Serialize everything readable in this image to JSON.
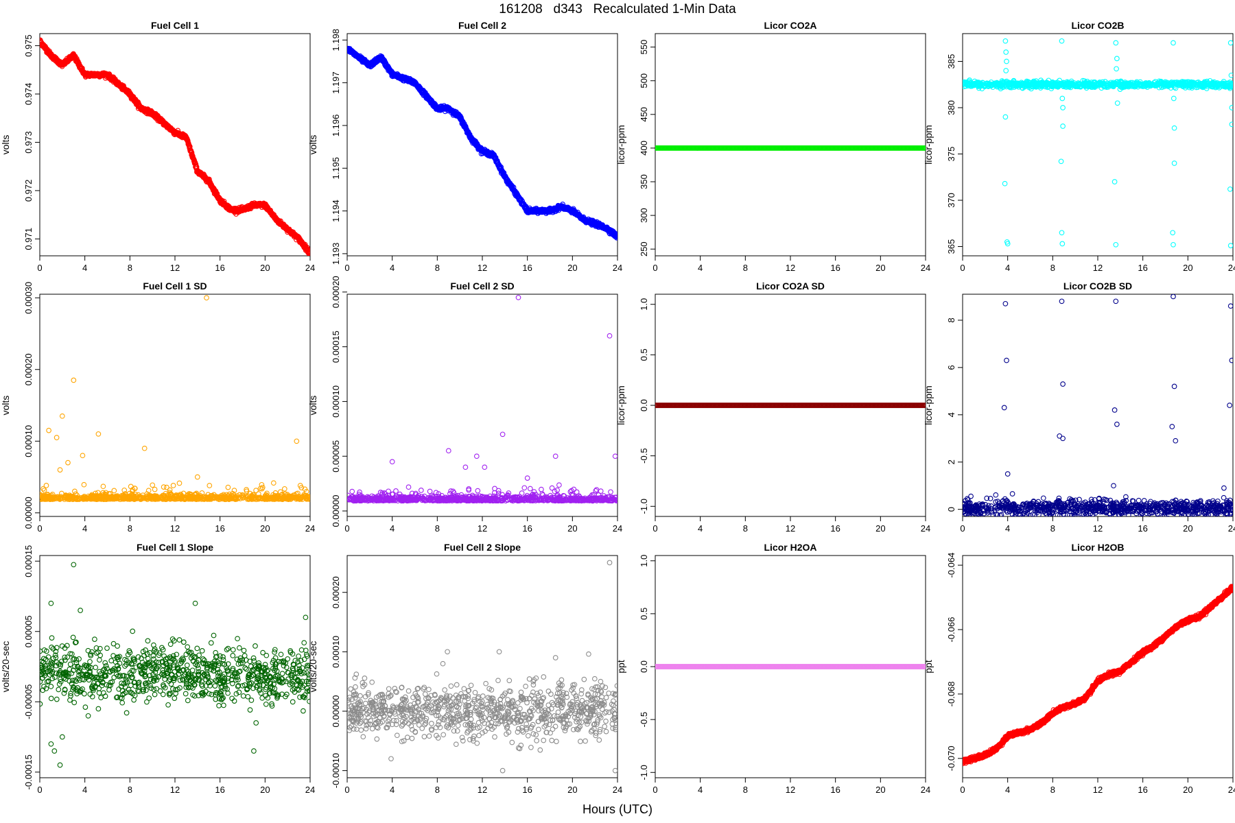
{
  "title": "161208   d343   Recalculated 1-Min Data",
  "xlabel": "Hours (UTC)",
  "chart_data": [
    {
      "id": "fc1",
      "type": "scatter",
      "title": "Fuel Cell 1",
      "ylabel": "volts",
      "xlim": [
        0,
        24
      ],
      "ylim": [
        0.97065,
        0.97525
      ],
      "xticks": [
        "0",
        "4",
        "8",
        "12",
        "16",
        "20",
        "24"
      ],
      "yticks": [
        "0.971",
        "0.972",
        "0.973",
        "0.974",
        "0.975"
      ],
      "color": "#ff0000",
      "x": [
        0,
        1,
        2,
        3,
        4,
        5,
        6,
        7,
        8,
        9,
        10,
        11,
        12,
        13,
        14,
        15,
        16,
        17,
        18,
        19,
        20,
        21,
        22,
        23,
        24
      ],
      "y": [
        0.9751,
        0.9748,
        0.9746,
        0.9748,
        0.9744,
        0.9744,
        0.9744,
        0.9742,
        0.974,
        0.9737,
        0.9736,
        0.9734,
        0.9732,
        0.9731,
        0.9724,
        0.9722,
        0.9718,
        0.9716,
        0.9716,
        0.9717,
        0.9717,
        0.9714,
        0.9712,
        0.971,
        0.9707
      ]
    },
    {
      "id": "fc2",
      "type": "scatter",
      "title": "Fuel Cell 2",
      "ylabel": "volts",
      "xlim": [
        0,
        24
      ],
      "ylim": [
        1.19295,
        1.19815
      ],
      "xticks": [
        "0",
        "4",
        "8",
        "12",
        "16",
        "20",
        "24"
      ],
      "yticks": [
        "1.193",
        "1.194",
        "1.195",
        "1.196",
        "1.197",
        "1.198"
      ],
      "color": "#0000ff",
      "x": [
        0,
        1,
        2,
        3,
        4,
        5,
        6,
        7,
        8,
        9,
        10,
        11,
        12,
        13,
        14,
        15,
        16,
        17,
        18,
        19,
        20,
        21,
        22,
        23,
        24
      ],
      "y": [
        1.1978,
        1.1976,
        1.1974,
        1.1976,
        1.1972,
        1.1971,
        1.197,
        1.1967,
        1.1964,
        1.1964,
        1.1962,
        1.1957,
        1.1954,
        1.1953,
        1.1948,
        1.1944,
        1.194,
        1.194,
        1.194,
        1.1941,
        1.194,
        1.1938,
        1.1937,
        1.1936,
        1.1934
      ]
    },
    {
      "id": "co2a",
      "type": "scatter",
      "title": "Licor CO2A",
      "ylabel": "licor-ppm",
      "xlim": [
        0,
        24
      ],
      "ylim": [
        240,
        570
      ],
      "xticks": [
        "0",
        "4",
        "8",
        "12",
        "16",
        "20",
        "24"
      ],
      "yticks": [
        "250",
        "300",
        "350",
        "400",
        "450",
        "500",
        "550"
      ],
      "color": "#00ee00",
      "x": [
        0,
        24
      ],
      "y": [
        400,
        400
      ]
    },
    {
      "id": "co2b",
      "type": "scatter",
      "title": "Licor CO2B",
      "ylabel": "licor-ppm",
      "xlim": [
        0,
        24
      ],
      "ylim": [
        364,
        388
      ],
      "xticks": [
        "0",
        "4",
        "8",
        "12",
        "16",
        "20",
        "24"
      ],
      "yticks": [
        "365",
        "370",
        "375",
        "380",
        "385"
      ],
      "color": "#00ffff",
      "baseline": 382.5,
      "x": [
        3.8,
        3.85,
        3.9,
        3.75,
        3.95,
        4.0,
        3.8,
        3.85,
        8.8,
        8.85,
        8.9,
        8.75,
        8.8,
        8.85,
        8.9,
        13.6,
        13.7,
        13.65,
        13.5,
        13.6,
        13.75,
        18.7,
        18.75,
        18.8,
        18.65,
        18.7,
        18.8,
        23.8,
        23.85,
        23.9,
        23.75,
        23.8,
        23.9
      ],
      "y": [
        387.2,
        386.0,
        385.0,
        371.8,
        365.5,
        365.3,
        379.0,
        384.0,
        387.2,
        381.0,
        378.0,
        374.2,
        366.5,
        365.3,
        380.0,
        387.0,
        385.3,
        384.2,
        372.0,
        365.2,
        380.5,
        387.0,
        381.0,
        377.8,
        366.5,
        365.2,
        374.0,
        387.0,
        383.5,
        378.2,
        371.2,
        365.1,
        380.0
      ]
    },
    {
      "id": "fc1sd",
      "type": "scatter",
      "title": "Fuel Cell 1 SD",
      "ylabel": "volts",
      "xlim": [
        0,
        24
      ],
      "ylim": [
        -5e-06,
        0.000305
      ],
      "xticks": [
        "0",
        "4",
        "8",
        "12",
        "16",
        "20",
        "24"
      ],
      "yticks": [
        "0.00000",
        "0.00010",
        "0.00020",
        "0.00030"
      ],
      "color": "#ffa500",
      "baseline": 2e-05,
      "x": [
        14.8,
        3.0,
        2.0,
        0.8,
        1.5,
        5.2,
        9.3,
        22.8,
        2.5,
        1.8,
        3.8,
        14.0
      ],
      "y": [
        0.0003,
        0.000185,
        0.000135,
        0.000115,
        0.000105,
        0.00011,
        9e-05,
        0.0001,
        7e-05,
        6e-05,
        8e-05,
        5e-05
      ]
    },
    {
      "id": "fc2sd",
      "type": "scatter",
      "title": "Fuel Cell 2 SD",
      "ylabel": "volts",
      "xlim": [
        0,
        24
      ],
      "ylim": [
        -5e-06,
        0.000198
      ],
      "xticks": [
        "0",
        "4",
        "8",
        "12",
        "16",
        "20",
        "24"
      ],
      "yticks": [
        "0.00000",
        "0.00005",
        "0.00010",
        "0.00015",
        "0.00020"
      ],
      "color": "#a020f0",
      "baseline": 1e-05,
      "x": [
        15.2,
        23.3,
        13.8,
        9.0,
        11.5,
        18.5,
        23.8,
        4.0,
        12.2,
        10.5,
        16.0
      ],
      "y": [
        0.000195,
        0.00016,
        7e-05,
        5.5e-05,
        5e-05,
        5e-05,
        5e-05,
        4.5e-05,
        4e-05,
        4e-05,
        3e-05
      ]
    },
    {
      "id": "co2asd",
      "type": "scatter",
      "title": "Licor CO2A SD",
      "ylabel": "licor-ppm",
      "xlim": [
        0,
        24
      ],
      "ylim": [
        -1.1,
        1.1
      ],
      "xticks": [
        "0",
        "4",
        "8",
        "12",
        "16",
        "20",
        "24"
      ],
      "yticks": [
        "-1.0",
        "-0.5",
        "0.0",
        "0.5",
        "1.0"
      ],
      "color": "#8b0000",
      "x": [
        0,
        24
      ],
      "y": [
        0,
        0
      ]
    },
    {
      "id": "co2bsd",
      "type": "scatter",
      "title": "Licor CO2B SD",
      "ylabel": "licor-ppm",
      "xlim": [
        0,
        24
      ],
      "ylim": [
        -0.3,
        9.1
      ],
      "xticks": [
        "0",
        "4",
        "8",
        "12",
        "16",
        "20",
        "24"
      ],
      "yticks": [
        "0",
        "2",
        "4",
        "6",
        "8"
      ],
      "color": "#00008b",
      "baseline": 0.05,
      "x": [
        3.8,
        3.9,
        3.7,
        4.0,
        8.8,
        8.9,
        8.6,
        8.9,
        13.6,
        13.5,
        13.7,
        13.4,
        18.7,
        18.8,
        18.6,
        18.9,
        23.8,
        23.9,
        23.7,
        23.2
      ],
      "y": [
        8.7,
        6.3,
        4.3,
        1.5,
        8.8,
        5.3,
        3.1,
        3.0,
        8.8,
        4.2,
        3.6,
        1.0,
        9.0,
        5.2,
        3.5,
        2.9,
        8.6,
        6.3,
        4.4,
        0.9
      ]
    },
    {
      "id": "fc1slope",
      "type": "scatter",
      "title": "Fuel Cell 1 Slope",
      "ylabel": "volts/20-sec",
      "xlim": [
        0,
        24
      ],
      "ylim": [
        -0.000158,
        0.000158
      ],
      "xticks": [
        "0",
        "4",
        "8",
        "12",
        "16",
        "20",
        "24"
      ],
      "yticks": [
        "-0.00015",
        "-0.00005",
        "0.00005",
        "0.00015"
      ],
      "color": "#006400",
      "baseline": -1e-05,
      "x": [
        3.0,
        13.8,
        1.0,
        3.6,
        23.6,
        1.8,
        1.0,
        1.3,
        2.0,
        19.0,
        19.2,
        4.3,
        5.2
      ],
      "y": [
        0.000145,
        9e-05,
        9e-05,
        8e-05,
        7e-05,
        -0.00014,
        -0.00011,
        -0.00012,
        -0.0001,
        -0.00012,
        -8e-05,
        -7e-05,
        -6e-05
      ]
    },
    {
      "id": "fc2slope",
      "type": "scatter",
      "title": "Fuel Cell 2 Slope",
      "ylabel": "volts/20-sec",
      "xlim": [
        0,
        24
      ],
      "ylim": [
        -0.000112,
        0.000262
      ],
      "xticks": [
        "0",
        "4",
        "8",
        "12",
        "16",
        "20",
        "24"
      ],
      "yticks": [
        "-0.00010",
        "0.00000",
        "0.00010",
        "0.00020"
      ],
      "color": "#8c8c8c",
      "baseline": 0.0,
      "x": [
        23.3,
        8.9,
        13.5,
        18.5,
        22.5,
        3.9,
        13.8,
        23.8,
        11.2,
        8.5
      ],
      "y": [
        0.00025,
        0.0001,
        0.0001,
        9e-05,
        5e-05,
        -8e-05,
        -0.0001,
        -0.0001,
        -5e-05,
        8e-05
      ]
    },
    {
      "id": "h2oa",
      "type": "scatter",
      "title": "Licor H2OA",
      "ylabel": "ppt",
      "xlim": [
        0,
        24
      ],
      "ylim": [
        -1.05,
        1.05
      ],
      "xticks": [
        "0",
        "4",
        "8",
        "12",
        "16",
        "20",
        "24"
      ],
      "yticks": [
        "-1.0",
        "-0.5",
        "0.0",
        "0.5",
        "1.0"
      ],
      "color": "#ee82ee",
      "x": [
        0,
        24
      ],
      "y": [
        0,
        0
      ]
    },
    {
      "id": "h2ob",
      "type": "scatter",
      "title": "Licor H2OB",
      "ylabel": "ppt",
      "xlim": [
        0,
        24
      ],
      "ylim": [
        -0.0706,
        -0.0637
      ],
      "xticks": [
        "0",
        "4",
        "8",
        "12",
        "16",
        "20",
        "24"
      ],
      "yticks": [
        "-0.070",
        "-0.068",
        "-0.066",
        "-0.064"
      ],
      "color": "#ff0000",
      "x": [
        0,
        1,
        2,
        3,
        4,
        5,
        6,
        7,
        8,
        9,
        10,
        11,
        12,
        13,
        14,
        15,
        16,
        17,
        18,
        19,
        20,
        21,
        22,
        23,
        24
      ],
      "y": [
        -0.0701,
        -0.07,
        -0.0699,
        -0.0697,
        -0.0693,
        -0.0692,
        -0.0691,
        -0.0689,
        -0.0686,
        -0.0684,
        -0.0683,
        -0.0681,
        -0.0676,
        -0.0674,
        -0.0673,
        -0.067,
        -0.0667,
        -0.0665,
        -0.0662,
        -0.0659,
        -0.0657,
        -0.0656,
        -0.0653,
        -0.065,
        -0.0647
      ]
    }
  ]
}
